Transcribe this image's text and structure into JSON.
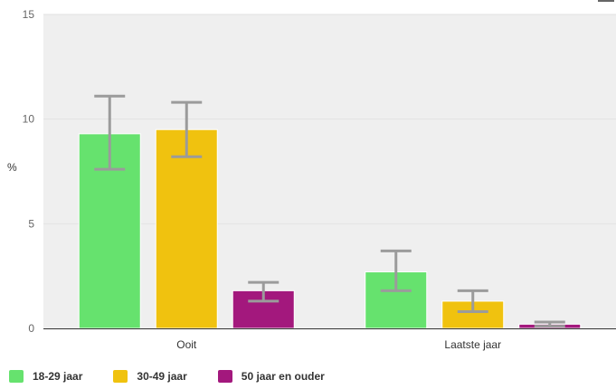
{
  "chart_data": {
    "type": "bar",
    "ylabel": "%",
    "ylim": [
      0,
      15
    ],
    "yticks": [
      0,
      5,
      10,
      15
    ],
    "grid": true,
    "legend_position": "bottom-left",
    "categories": [
      "Ooit",
      "Laatste jaar"
    ],
    "series": [
      {
        "name": "18-29 jaar",
        "color": "#66e26e",
        "values": [
          9.3,
          2.7
        ],
        "err_low": [
          7.6,
          1.8
        ],
        "err_high": [
          11.1,
          3.7
        ]
      },
      {
        "name": "30-49 jaar",
        "color": "#f0c20f",
        "values": [
          9.5,
          1.3
        ],
        "err_low": [
          8.2,
          0.8
        ],
        "err_high": [
          10.8,
          1.8
        ]
      },
      {
        "name": "50 jaar en ouder",
        "color": "#a3187d",
        "values": [
          1.8,
          0.2
        ],
        "err_low": [
          1.3,
          0.1
        ],
        "err_high": [
          2.2,
          0.3
        ]
      }
    ],
    "error_bar_color": "#9b9b9b",
    "background_color": "#efefef"
  },
  "icons": {
    "menu": "menu-icon"
  }
}
